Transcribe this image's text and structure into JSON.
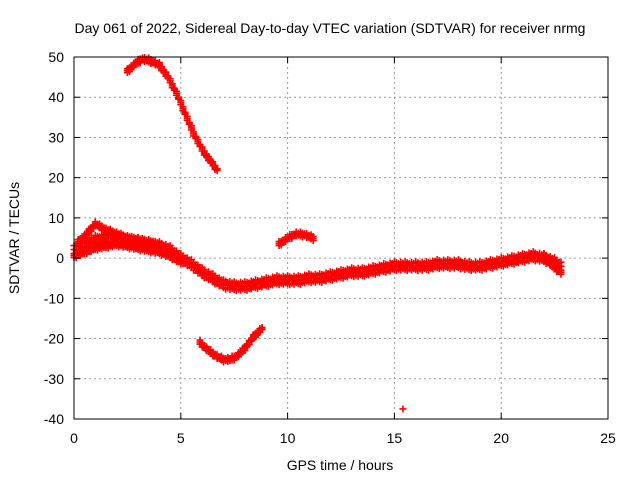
{
  "chart_data": {
    "type": "scatter",
    "title": "Day 061 of 2022, Sidereal Day-to-day VTEC variation (SDTVAR) for receiver nrmg",
    "xlabel": "GPS time / hours",
    "ylabel": "SDTVAR / TECUs",
    "xlim": [
      0,
      25
    ],
    "ylim": [
      -40,
      50
    ],
    "xticks": [
      0,
      5,
      10,
      15,
      20,
      25
    ],
    "yticks": [
      -40,
      -30,
      -20,
      -10,
      0,
      10,
      20,
      30,
      40,
      50
    ],
    "grid": true,
    "marker": "plus",
    "color": "#ff0000",
    "series": [
      {
        "name": "arc-high",
        "x": [
          2.5,
          2.9,
          3.2,
          3.6,
          4.0,
          4.4,
          4.8,
          5.2,
          5.6,
          6.0,
          6.4,
          6.7
        ],
        "y": [
          46.5,
          48.5,
          49.5,
          49,
          48,
          45,
          41,
          36,
          31,
          27,
          24,
          22
        ],
        "width": 3
      },
      {
        "name": "arc-low",
        "x": [
          5.9,
          6.3,
          6.7,
          7.0,
          7.3,
          7.6,
          7.9,
          8.2,
          8.5,
          8.8
        ],
        "y": [
          -21,
          -23,
          -24.5,
          -25.2,
          -25.2,
          -24.5,
          -23,
          -21,
          -19,
          -17.5
        ],
        "width": 3
      },
      {
        "name": "arc-mid",
        "x": [
          9.6,
          10.0,
          10.4,
          10.8,
          11.2
        ],
        "y": [
          3.5,
          5,
          6,
          5.8,
          5
        ],
        "width": 3
      },
      {
        "name": "main-band",
        "x": [
          0,
          0.5,
          1.0,
          1.5,
          2.0,
          2.5,
          3.0,
          3.5,
          4.0,
          4.5,
          5.0,
          5.5,
          6.0,
          6.5,
          7.0,
          7.5,
          8.0,
          8.5,
          9.0,
          9.5,
          10.0,
          10.5,
          11.0,
          11.5,
          12.0,
          12.5,
          13.0,
          13.5,
          14.0,
          14.5,
          15.0,
          15.5,
          16.0,
          16.5,
          17.0,
          17.5,
          18.0,
          18.5,
          19.0,
          19.5,
          20.0,
          20.5,
          21.0,
          21.5,
          22.0,
          22.5,
          22.8
        ],
        "y": [
          2,
          3.5,
          4.5,
          5,
          5,
          4.5,
          4,
          3.5,
          3,
          2,
          0,
          -1.5,
          -3.5,
          -5,
          -6.5,
          -7,
          -7,
          -6.5,
          -6,
          -5.5,
          -5.5,
          -5.5,
          -5,
          -5,
          -4.5,
          -4,
          -3.5,
          -3.5,
          -3,
          -2.5,
          -2,
          -2,
          -2,
          -2,
          -1.5,
          -1.5,
          -1.5,
          -2,
          -2,
          -1.5,
          -1,
          -0.5,
          0,
          0.5,
          0,
          -1,
          -2
        ],
        "width": 7
      },
      {
        "name": "upper-tail",
        "x": [
          0.2,
          0.6,
          1.0,
          1.5,
          2.0,
          2.5,
          3.0,
          3.5,
          4.0
        ],
        "y": [
          4,
          6,
          8.5,
          7,
          6,
          5,
          4.5,
          4,
          3
        ],
        "width": 3
      },
      {
        "name": "lower-band",
        "x": [
          0,
          0.5,
          1.0,
          1.5,
          2.0,
          2.5,
          3.0,
          3.5,
          4.0,
          4.5,
          5.0
        ],
        "y": [
          0.5,
          1.5,
          2.5,
          3,
          3.5,
          3,
          2.5,
          2,
          1.5,
          0.5,
          -1
        ],
        "width": 3
      },
      {
        "name": "branch",
        "x": [
          22.0,
          22.4,
          22.8
        ],
        "y": [
          0.5,
          -2,
          -3.5
        ],
        "width": 3
      },
      {
        "name": "outlier",
        "x": [
          15.4
        ],
        "y": [
          -37.5
        ],
        "width": 1
      }
    ]
  }
}
